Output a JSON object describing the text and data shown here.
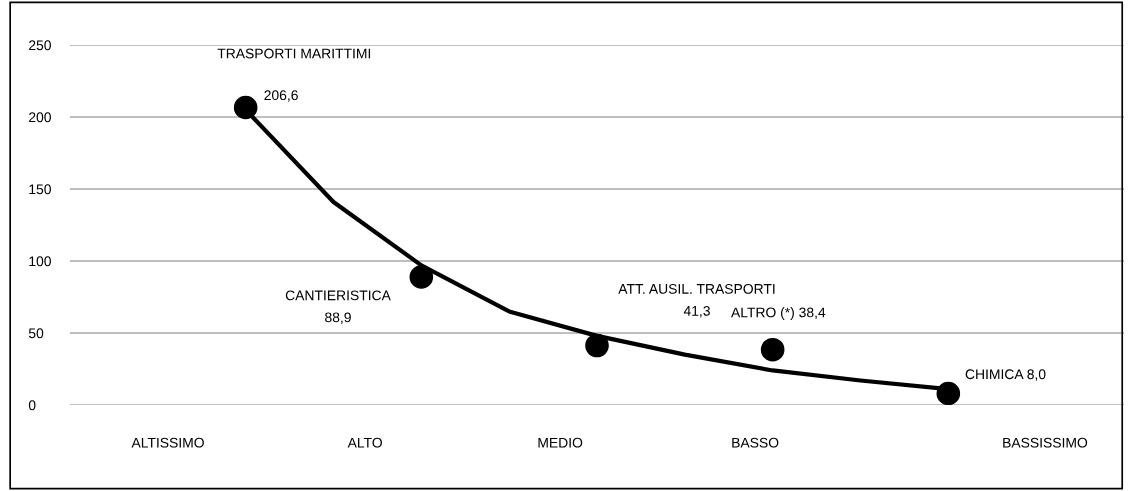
{
  "chart_data": {
    "type": "scatter",
    "categories": [
      null,
      null,
      null,
      null,
      null,
      null,
      null,
      null,
      null
    ],
    "ylim": [
      0,
      250
    ],
    "yticks": [
      0,
      50,
      100,
      150,
      200,
      250
    ],
    "grid": "y",
    "marker": "circle",
    "legend": false,
    "series": [
      {
        "color": "#000000",
        "values": [
          206.6,
          null,
          88.9,
          null,
          41.3,
          null,
          38.4,
          null,
          8.0
        ],
        "value_labels": [
          "206,6",
          null,
          "CANTIERISTICA\n88,9",
          null,
          "ATT. AUSIL. TRASPORTI\n41,3",
          null,
          "ALTRO (*) 38,4",
          null,
          "CHIMICA 8,0"
        ]
      },
      {
        "type": "line",
        "color": "#000000",
        "line_style": "solid",
        "marker": "none",
        "values": [
          205,
          141,
          97,
          65,
          48,
          35,
          24,
          17,
          11
        ]
      }
    ],
    "annotations": [
      "TRASPORTI MARITTIMI",
      "ALTISSIMO",
      "ALTO",
      "MEDIO",
      "BASSO",
      "BASSISSIMO"
    ]
  }
}
